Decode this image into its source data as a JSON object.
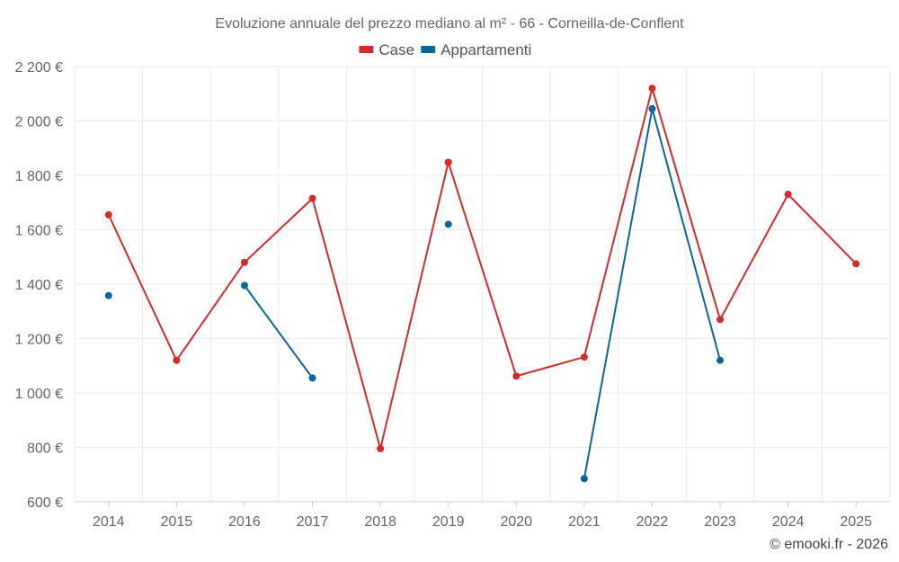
{
  "chart_data": {
    "type": "line",
    "title": "Evoluzione annuale del prezzo mediano al m² - 66 - Corneilla-de-Conflent",
    "xlabel": "",
    "ylabel": "",
    "x": [
      "2014",
      "2015",
      "2016",
      "2017",
      "2018",
      "2019",
      "2020",
      "2021",
      "2022",
      "2023",
      "2024",
      "2025"
    ],
    "ylim": [
      600,
      2200
    ],
    "yticks": [
      600,
      800,
      1000,
      1200,
      1400,
      1600,
      1800,
      2000,
      2200
    ],
    "ytick_labels": [
      "600 €",
      "800 €",
      "1 000 €",
      "1 200 €",
      "1 400 €",
      "1 600 €",
      "1 800 €",
      "2 000 €",
      "2 200 €"
    ],
    "grid": true,
    "legend_position": "top-center",
    "series": [
      {
        "name": "Case",
        "color": "#d42a2a",
        "values": [
          1655,
          1120,
          1480,
          1715,
          795,
          1848,
          1062,
          1132,
          2120,
          1270,
          1730,
          1475
        ]
      },
      {
        "name": "Appartamenti",
        "color": "#0b6699",
        "values": [
          1358,
          null,
          1395,
          1055,
          null,
          1620,
          null,
          685,
          2045,
          1120,
          null,
          null
        ]
      }
    ]
  },
  "credit": "© emooki.fr - 2026"
}
